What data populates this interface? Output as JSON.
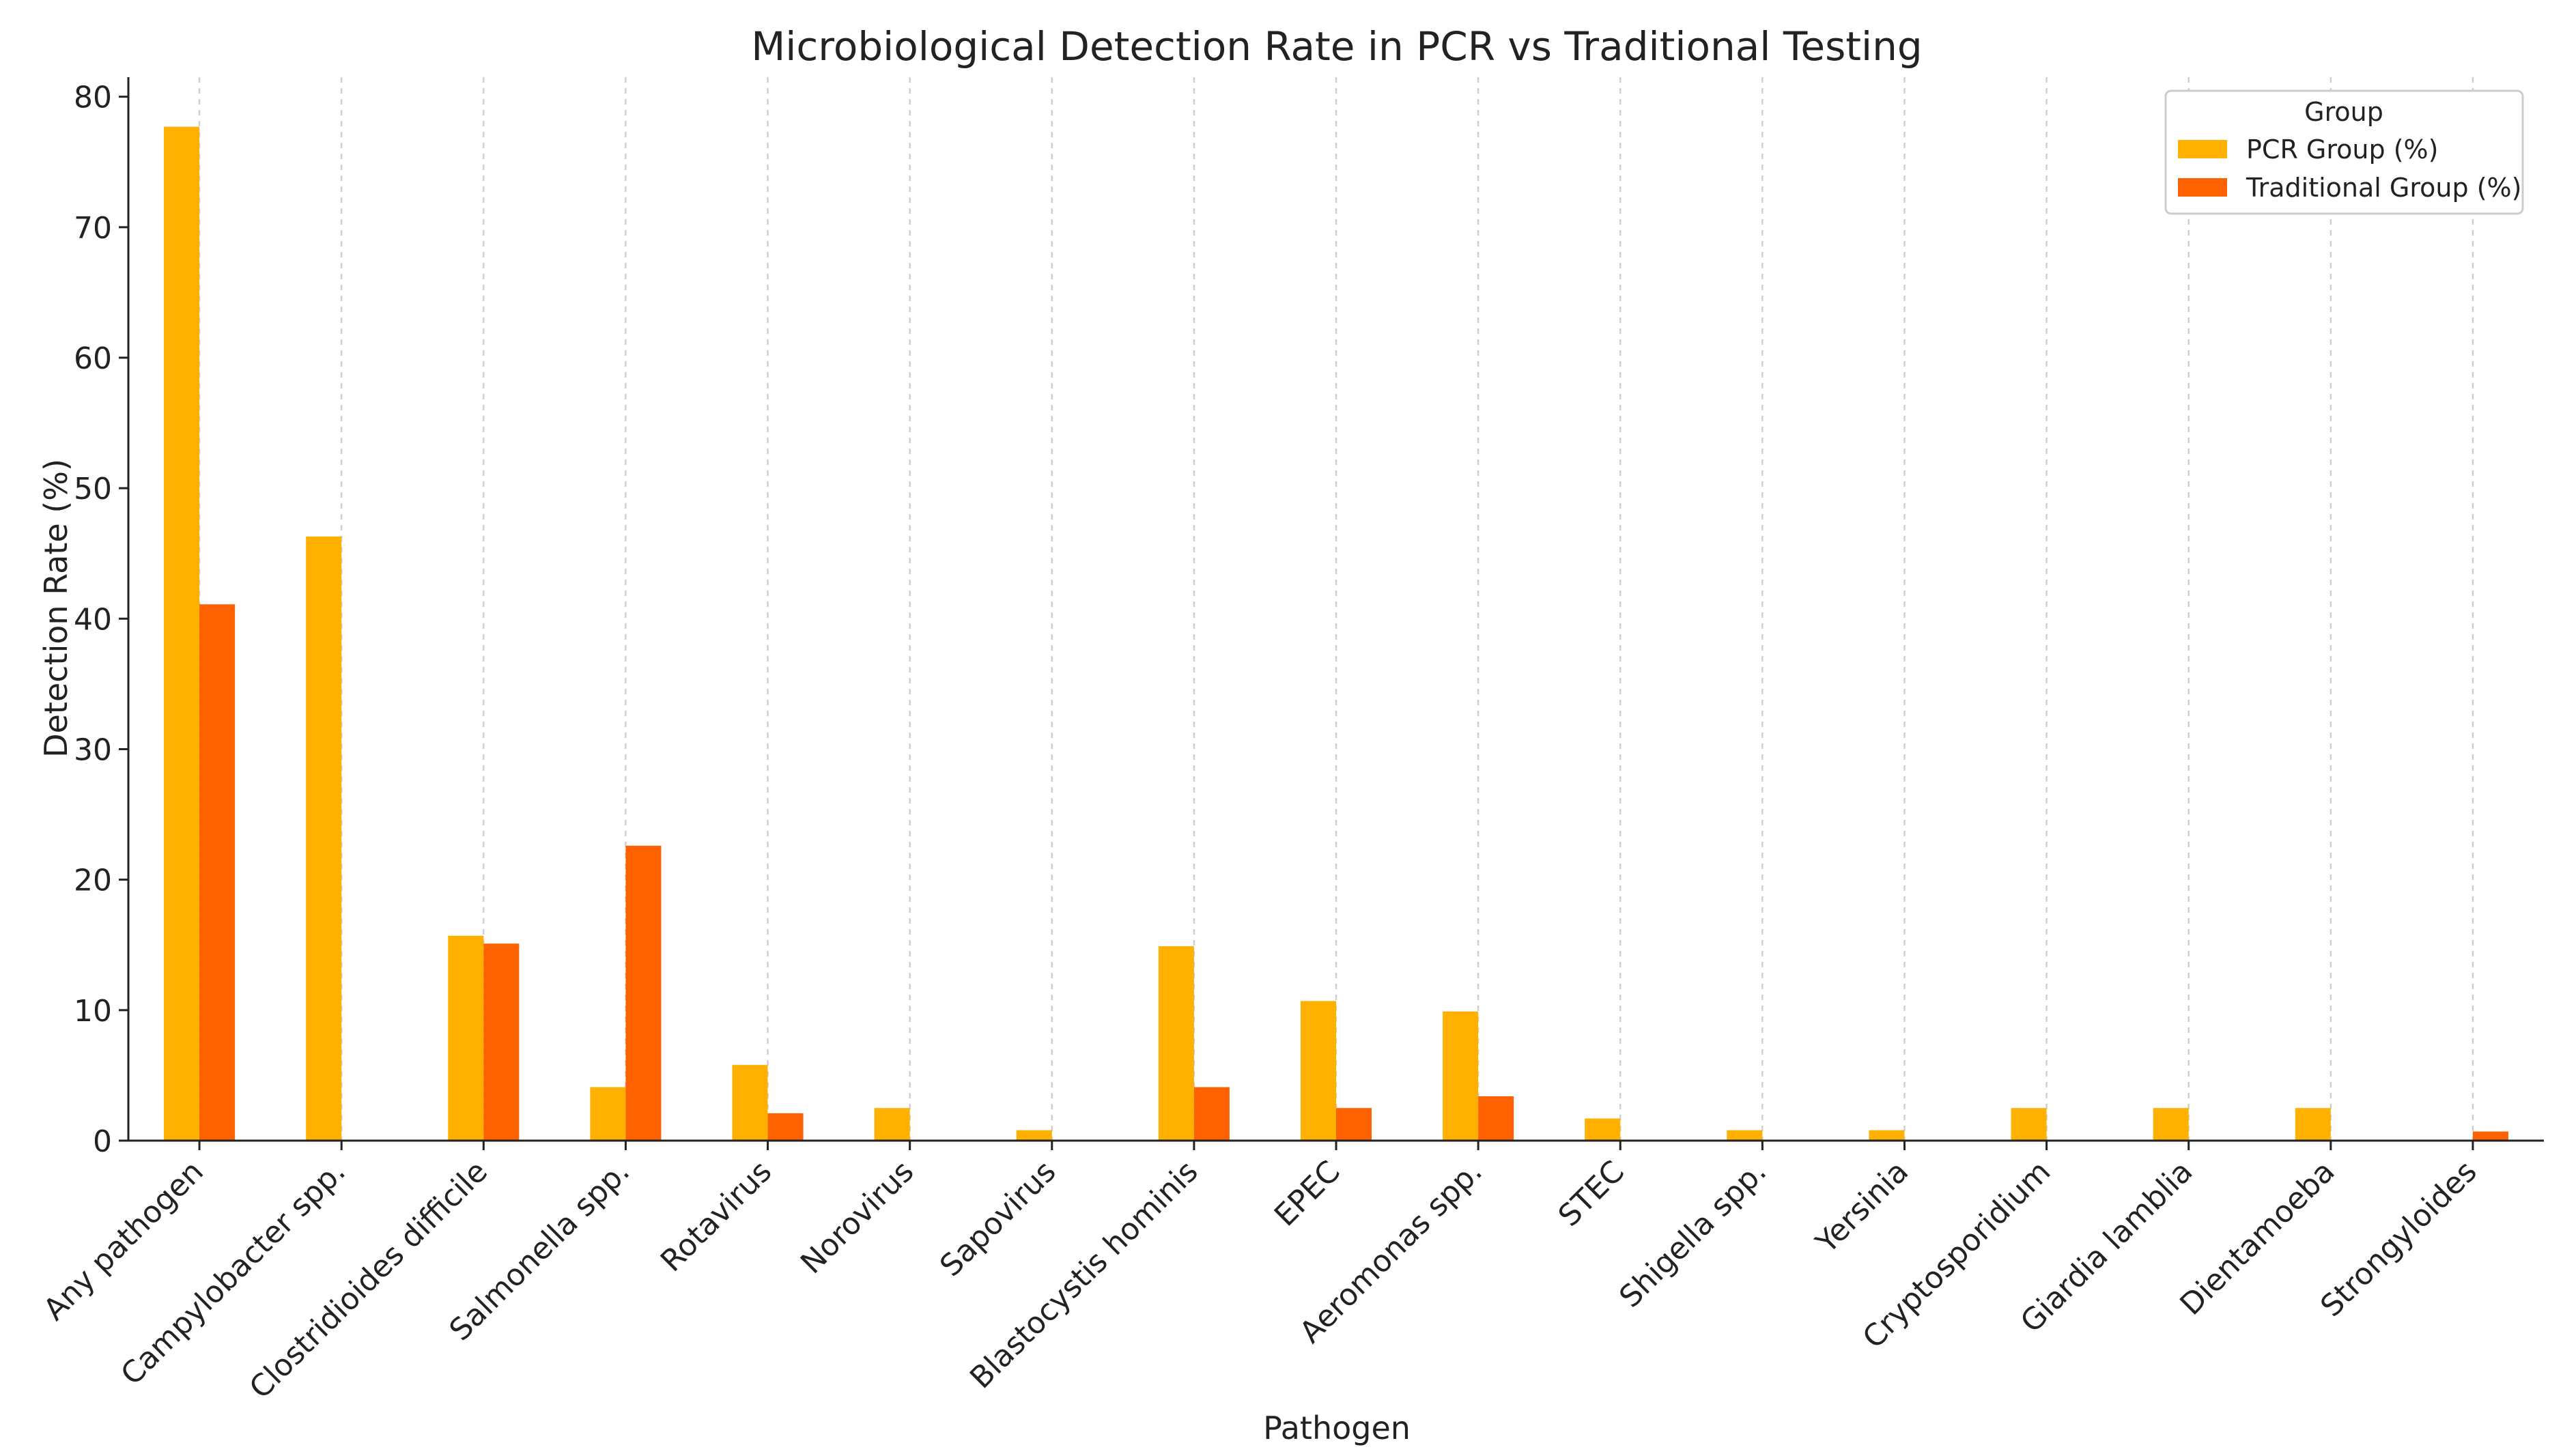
{
  "chart_data": {
    "type": "bar",
    "title": "Microbiological Detection Rate in PCR vs Traditional Testing",
    "xlabel": "Pathogen",
    "ylabel": "Detection Rate (%)",
    "ylim": [
      0,
      81.5
    ],
    "yticks": [
      0,
      10,
      20,
      30,
      40,
      50,
      60,
      70,
      80
    ],
    "grid": "vertical-dashed",
    "legend": {
      "title": "Group",
      "placement": "top-right"
    },
    "categories": [
      "Any pathogen",
      "Campylobacter spp.",
      "Clostridioides difficile",
      "Salmonella spp.",
      "Rotavirus",
      "Norovirus",
      "Sapovirus",
      "Blastocystis hominis",
      "EPEC",
      "Aeromonas spp.",
      "STEC",
      "Shigella spp.",
      "Yersinia",
      "Cryptosporidium",
      "Giardia lamblia",
      "Dientamoeba",
      "Strongyloides"
    ],
    "series": [
      {
        "name": "PCR Group (%)",
        "color": "#FFB000",
        "values": [
          77.7,
          46.3,
          15.7,
          4.1,
          5.8,
          2.5,
          0.8,
          14.9,
          10.7,
          9.9,
          1.7,
          0.8,
          0.8,
          2.5,
          2.5,
          2.5,
          0
        ]
      },
      {
        "name": "Traditional Group (%)",
        "color": "#FE6100",
        "values": [
          41.1,
          0,
          15.1,
          22.6,
          2.1,
          0,
          0,
          4.1,
          2.5,
          3.4,
          0,
          0,
          0,
          0,
          0,
          0,
          0.7
        ]
      }
    ]
  }
}
